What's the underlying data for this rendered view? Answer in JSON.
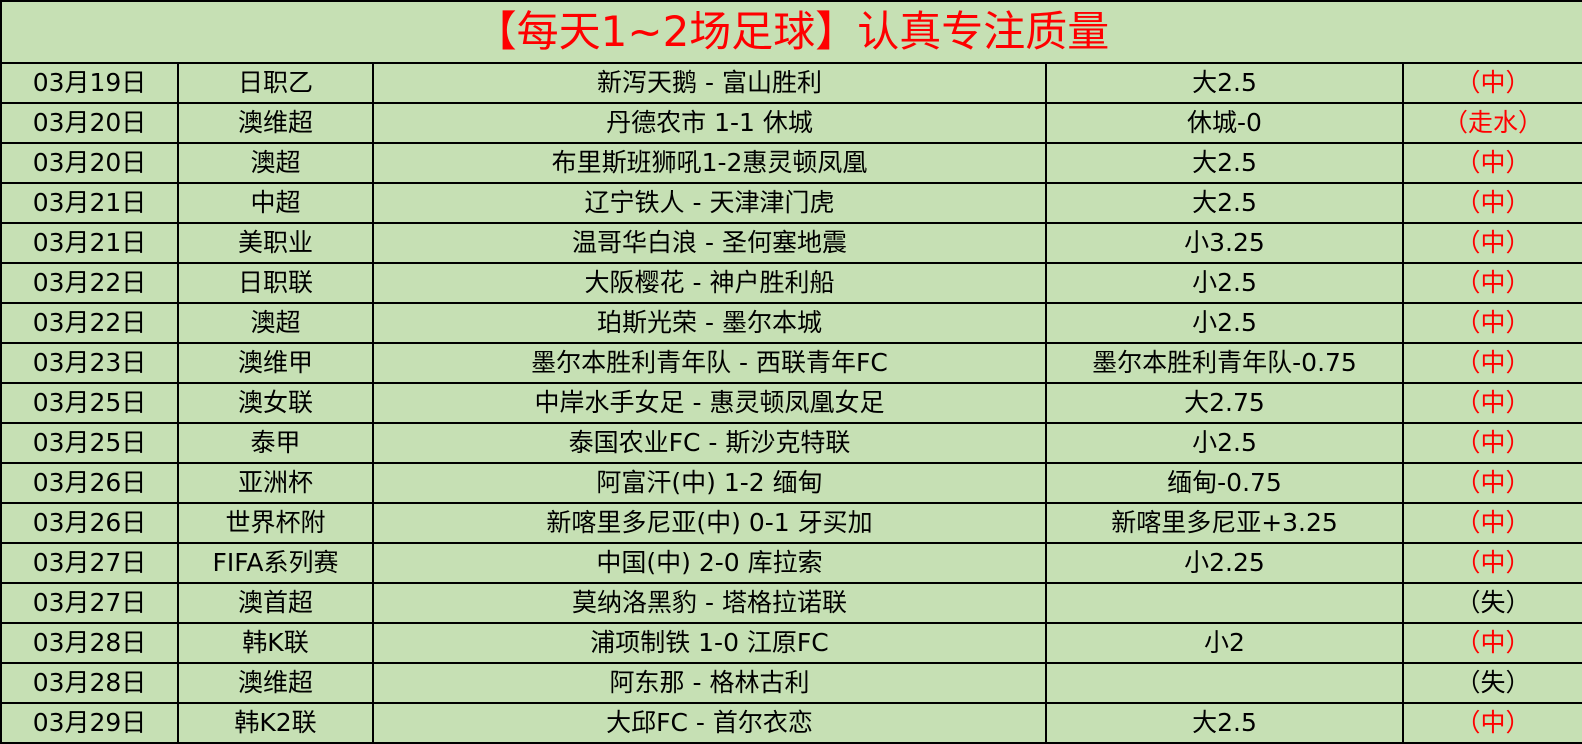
{
  "title": "【每天1~2场足球】认真专注质量",
  "colors": {
    "background": "#c6e0b4",
    "accent": "#ff0000"
  },
  "rows": [
    {
      "date": "03月19日",
      "league": "日职乙",
      "match": "新泻天鹅 - 富山胜利",
      "pick": "大2.5",
      "result": "（中）"
    },
    {
      "date": "03月20日",
      "league": "澳维超",
      "match": "丹德农市 1-1 休城",
      "pick": "休城-0",
      "result": "（走水）"
    },
    {
      "date": "03月20日",
      "league": "澳超",
      "match": "布里斯班狮吼1-2惠灵顿凤凰",
      "pick": "大2.5",
      "result": "（中）"
    },
    {
      "date": "03月21日",
      "league": "中超",
      "match": "辽宁铁人 - 天津津门虎",
      "pick": "大2.5",
      "result": "（中）"
    },
    {
      "date": "03月21日",
      "league": "美职业",
      "match": "温哥华白浪 - 圣何塞地震",
      "pick": "小3.25",
      "result": "（中）"
    },
    {
      "date": "03月22日",
      "league": "日职联",
      "match": "大阪樱花 - 神户胜利船",
      "pick": "小2.5",
      "result": "（中）"
    },
    {
      "date": "03月22日",
      "league": "澳超",
      "match": "珀斯光荣 - 墨尔本城",
      "pick": "小2.5",
      "result": "（中）"
    },
    {
      "date": "03月23日",
      "league": "澳维甲",
      "match": "墨尔本胜利青年队 - 西联青年FC",
      "pick": "墨尔本胜利青年队-0.75",
      "result": "（中）"
    },
    {
      "date": "03月25日",
      "league": "澳女联",
      "match": "中岸水手女足 - 惠灵顿凤凰女足",
      "pick": "大2.75",
      "result": "（中）"
    },
    {
      "date": "03月25日",
      "league": "泰甲",
      "match": "泰国农业FC - 斯沙克特联",
      "pick": "小2.5",
      "result": "（中）"
    },
    {
      "date": "03月26日",
      "league": "亚洲杯",
      "match": "阿富汗(中) 1-2 缅甸",
      "pick": "缅甸-0.75",
      "result": "（中）"
    },
    {
      "date": "03月26日",
      "league": "世界杯附",
      "match": "新喀里多尼亚(中) 0-1 牙买加",
      "pick": "新喀里多尼亚+3.25",
      "result": "（中）"
    },
    {
      "date": "03月27日",
      "league": "FIFA系列赛",
      "match": "中国(中) 2-0 库拉索",
      "pick": "小2.25",
      "result": "（中）"
    },
    {
      "date": "03月27日",
      "league": "澳首超",
      "match": "莫纳洛黑豹 - 塔格拉诺联",
      "pick": "",
      "result": "（失）",
      "lose": true
    },
    {
      "date": "03月28日",
      "league": "韩K联",
      "match": "浦项制铁 1-0 江原FC",
      "pick": "小2",
      "result": "（中）"
    },
    {
      "date": "03月28日",
      "league": "澳维超",
      "match": "阿东那 - 格林古利",
      "pick": "",
      "result": "（失）",
      "lose": true
    },
    {
      "date": "03月29日",
      "league": "韩K2联",
      "match": "大邱FC - 首尔衣恋",
      "pick": "大2.5",
      "result": "（中）"
    }
  ]
}
